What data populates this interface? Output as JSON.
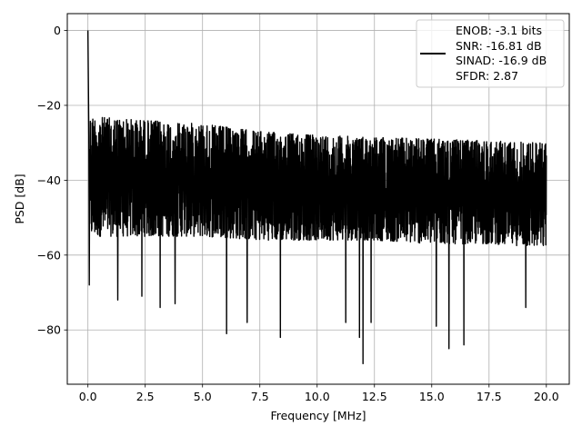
{
  "chart_data": {
    "type": "line",
    "title": "",
    "xlabel": "Frequency [MHz]",
    "ylabel": "PSD [dB]",
    "xlim": [
      -0.9,
      21.0
    ],
    "ylim": [
      -94.5,
      4.5
    ],
    "x_ticks": [
      0.0,
      2.5,
      5.0,
      7.5,
      10.0,
      12.5,
      15.0,
      17.5,
      20.0
    ],
    "x_tick_labels": [
      "0.0",
      "2.5",
      "5.0",
      "7.5",
      "10.0",
      "12.5",
      "15.0",
      "17.5",
      "20.0"
    ],
    "y_ticks": [
      0,
      -20,
      -40,
      -60,
      -80
    ],
    "y_tick_labels": [
      "0",
      "−20",
      "−40",
      "−60",
      "−80"
    ],
    "grid": true,
    "legend_position": "top-right",
    "legend_entries": [
      "ENOB: -3.1 bits",
      "SNR: -16.81 dB",
      "SINAD: -16.9 dB",
      "SFDR: 2.87"
    ],
    "series": [
      {
        "color": "#000000",
        "description": "Noise-like power spectral density trace from 0 to 20 MHz",
        "peak": {
          "x": 0.0,
          "y": 0.0
        },
        "upper_envelope": {
          "x": [
            0.1,
            2.5,
            5.0,
            7.5,
            10.0,
            12.5,
            15.0,
            17.5,
            20.0
          ],
          "y": [
            -21,
            -22,
            -23,
            -25,
            -26,
            -26.5,
            -27,
            -27.5,
            -28
          ]
        },
        "lower_envelope": {
          "x": [
            0.1,
            2.5,
            5.0,
            7.5,
            10.0,
            12.5,
            15.0,
            17.5,
            20.0
          ],
          "y": [
            -58,
            -58,
            -58,
            -59,
            -59,
            -59,
            -60,
            -60,
            -61
          ]
        },
        "deep_dips": [
          {
            "x": 0.05,
            "y": -68
          },
          {
            "x": 1.3,
            "y": -72
          },
          {
            "x": 2.35,
            "y": -71
          },
          {
            "x": 3.15,
            "y": -74
          },
          {
            "x": 3.8,
            "y": -73
          },
          {
            "x": 6.05,
            "y": -81
          },
          {
            "x": 6.95,
            "y": -78
          },
          {
            "x": 8.4,
            "y": -82
          },
          {
            "x": 11.25,
            "y": -78
          },
          {
            "x": 11.85,
            "y": -82
          },
          {
            "x": 12.0,
            "y": -89
          },
          {
            "x": 12.35,
            "y": -78
          },
          {
            "x": 15.2,
            "y": -79
          },
          {
            "x": 15.75,
            "y": -85
          },
          {
            "x": 16.4,
            "y": -84
          },
          {
            "x": 19.1,
            "y": -74
          }
        ]
      }
    ]
  }
}
